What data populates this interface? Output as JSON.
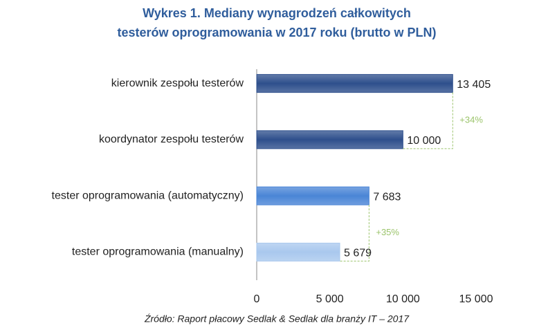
{
  "chart_data": {
    "type": "bar",
    "orientation": "horizontal",
    "title": [
      "Wykres 1. Mediany wynagrodzeń całkowitych",
      "testerów oprogramowania w 2017 roku (brutto w PLN)"
    ],
    "categories": [
      "kierownik zespołu testerów",
      "koordynator zespołu testerów",
      "tester oprogramowania (automatyczny)",
      "tester oprogramowania (manualny)"
    ],
    "values": [
      13405,
      10000,
      7683,
      5679
    ],
    "value_labels": [
      "13 405",
      "10 000",
      "7 683",
      "5 679"
    ],
    "colors": [
      "#2e4f8c",
      "#2e4f8c",
      "#4a85d6",
      "#a9c8ee"
    ],
    "xlim": [
      0,
      15000
    ],
    "xticks": [
      0,
      {
        "value": 5000,
        "label": "5 000"
      },
      {
        "value": 10000,
        "label": "10 000"
      },
      {
        "value": 15000,
        "label": "15 000"
      }
    ],
    "annotations": [
      "+34%",
      "+35%"
    ],
    "annotation_color": "#9bc46b",
    "source": "Źródło: Raport płacowy Sedlak & Sedlak dla branży IT – 2017"
  }
}
